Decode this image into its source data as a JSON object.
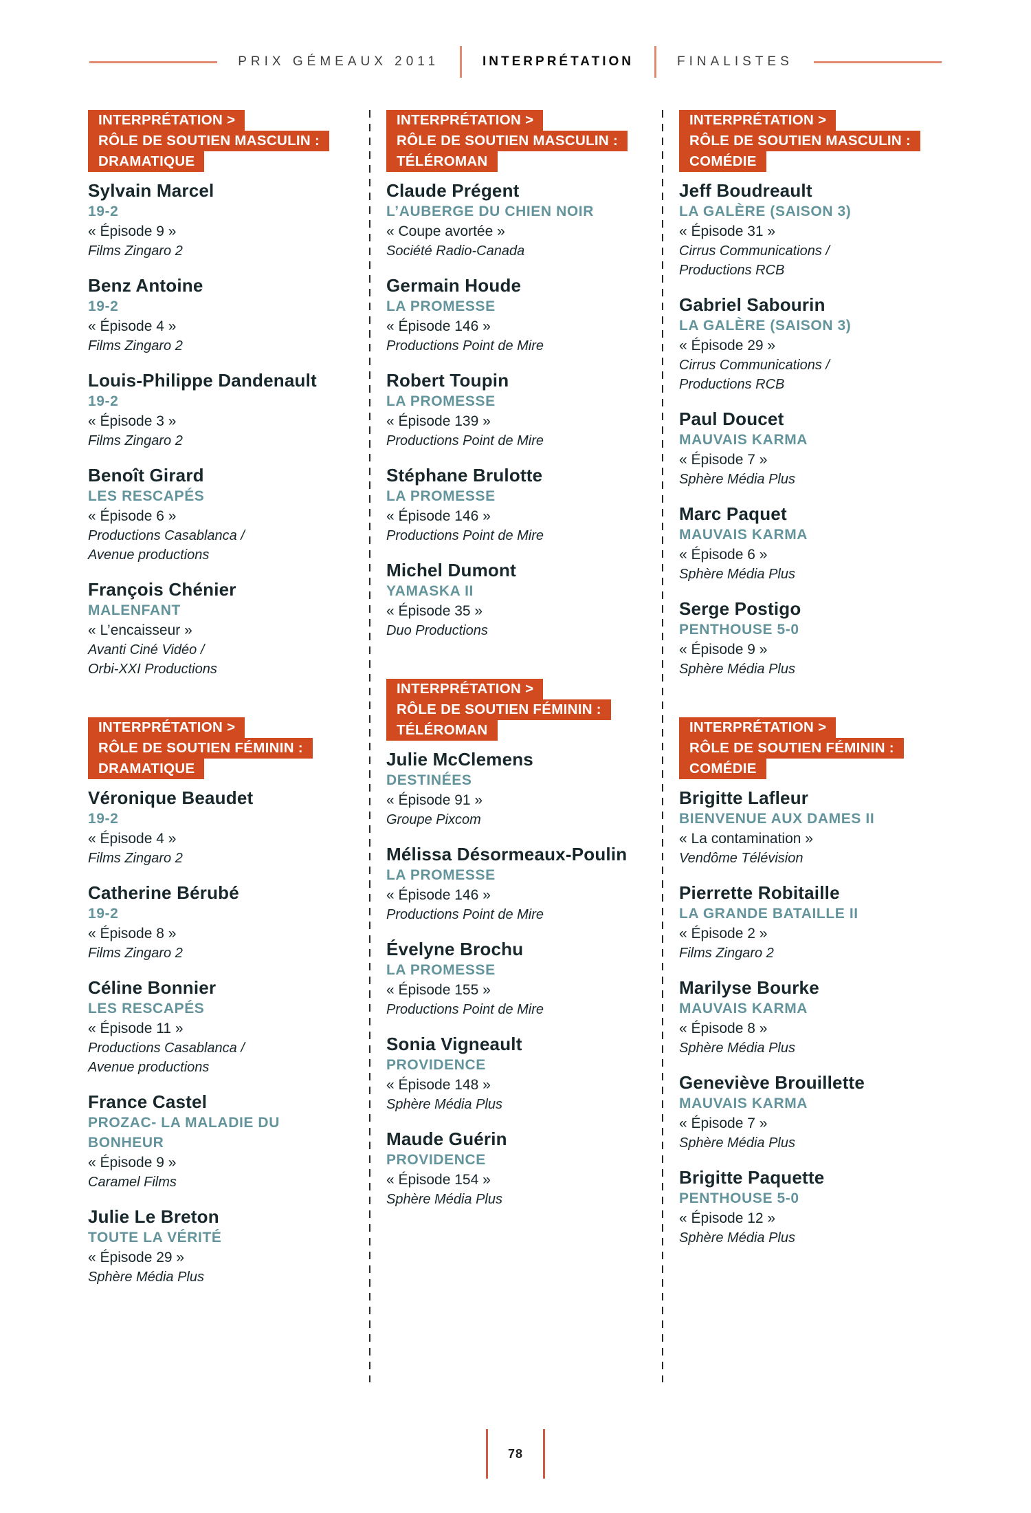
{
  "page_header": {
    "left_label": "PRIX GÉMEAUX 2011",
    "center_label": "INTERPRÉTATION",
    "right_label": "FINALISTES"
  },
  "page_number": "78",
  "colors": {
    "accent": "#d14a20",
    "teal": "#64949b",
    "ink": "#18272b",
    "rule": "#e08a72",
    "footer-rule": "#d05a43"
  },
  "columns": [
    {
      "sections": [
        {
          "header_lines": [
            "INTERPRÉTATION >",
            "RÔLE DE SOUTIEN MASCULIN :",
            "DRAMATIQUE"
          ],
          "entries": [
            {
              "name": "Sylvain Marcel",
              "show": "19-2",
              "episode": "« Épisode 9 »",
              "producer_lines": [
                "Films Zingaro 2"
              ]
            },
            {
              "name": "Benz Antoine",
              "show": "19-2",
              "episode": "« Épisode 4 »",
              "producer_lines": [
                "Films Zingaro 2"
              ]
            },
            {
              "name": "Louis-Philippe Dandenault",
              "show": "19-2",
              "episode": "« Épisode 3 »",
              "producer_lines": [
                "Films Zingaro 2"
              ]
            },
            {
              "name": "Benoît Girard",
              "show": "LES RESCAPÉS",
              "episode": "« Épisode 6 »",
              "producer_lines": [
                "Productions Casablanca /",
                "Avenue productions"
              ]
            },
            {
              "name": "François Chénier",
              "show": "MALENFANT",
              "episode": "« L’encaisseur »",
              "producer_lines": [
                "Avanti Ciné Vidéo /",
                "Orbi-XXI Productions"
              ]
            }
          ]
        },
        {
          "header_lines": [
            "INTERPRÉTATION >",
            "RÔLE DE SOUTIEN FÉMININ :",
            "DRAMATIQUE"
          ],
          "entries": [
            {
              "name": "Véronique Beaudet",
              "show": "19-2",
              "episode": "« Épisode 4 »",
              "producer_lines": [
                "Films Zingaro 2"
              ]
            },
            {
              "name": "Catherine Bérubé",
              "show": "19-2",
              "episode": "« Épisode 8 »",
              "producer_lines": [
                "Films Zingaro 2"
              ]
            },
            {
              "name": "Céline Bonnier",
              "show": "LES RESCAPÉS",
              "episode": "« Épisode 11 »",
              "producer_lines": [
                "Productions Casablanca /",
                "Avenue productions"
              ]
            },
            {
              "name": "France Castel",
              "show": "PROZAC- LA MALADIE DU BONHEUR",
              "episode": "« Épisode 9 »",
              "producer_lines": [
                "Caramel Films"
              ]
            },
            {
              "name": "Julie Le Breton",
              "show": "TOUTE LA VÉRITÉ",
              "episode": "« Épisode 29 »",
              "producer_lines": [
                "Sphère Média Plus"
              ]
            }
          ]
        }
      ]
    },
    {
      "sections": [
        {
          "header_lines": [
            "INTERPRÉTATION >",
            "RÔLE DE SOUTIEN MASCULIN :",
            "TÉLÉROMAN"
          ],
          "entries": [
            {
              "name": "Claude Prégent",
              "show": "L’AUBERGE DU CHIEN NOIR",
              "episode": "« Coupe avortée »",
              "producer_lines": [
                "Société Radio-Canada"
              ]
            },
            {
              "name": "Germain Houde",
              "show": "LA PROMESSE",
              "episode": "« Épisode 146 »",
              "producer_lines": [
                "Productions Point de Mire"
              ]
            },
            {
              "name": "Robert Toupin",
              "show": "LA PROMESSE",
              "episode": "« Épisode 139 »",
              "producer_lines": [
                "Productions Point de Mire"
              ]
            },
            {
              "name": "Stéphane Brulotte",
              "show": "LA PROMESSE",
              "episode": "« Épisode 146 »",
              "producer_lines": [
                "Productions Point de Mire"
              ]
            },
            {
              "name": "Michel Dumont",
              "show": "YAMASKA II",
              "episode": "« Épisode 35 »",
              "producer_lines": [
                "Duo Productions"
              ]
            }
          ]
        },
        {
          "header_lines": [
            "INTERPRÉTATION >",
            "RÔLE DE SOUTIEN FÉMININ :",
            "TÉLÉROMAN"
          ],
          "entries": [
            {
              "name": "Julie McClemens",
              "show": "DESTINÉES",
              "episode": "« Épisode 91 »",
              "producer_lines": [
                "Groupe Pixcom"
              ]
            },
            {
              "name": "Mélissa Désormeaux-Poulin",
              "show": "LA PROMESSE",
              "episode": "« Épisode 146 »",
              "producer_lines": [
                "Productions Point de Mire"
              ]
            },
            {
              "name": "Évelyne Brochu",
              "show": "LA PROMESSE",
              "episode": "« Épisode 155 »",
              "producer_lines": [
                "Productions Point de Mire"
              ]
            },
            {
              "name": "Sonia Vigneault",
              "show": "PROVIDENCE",
              "episode": "« Épisode 148 »",
              "producer_lines": [
                "Sphère Média Plus"
              ]
            },
            {
              "name": "Maude Guérin",
              "show": "PROVIDENCE",
              "episode": "« Épisode 154 »",
              "producer_lines": [
                "Sphère Média Plus"
              ]
            }
          ]
        }
      ]
    },
    {
      "sections": [
        {
          "header_lines": [
            "INTERPRÉTATION >",
            "RÔLE DE SOUTIEN MASCULIN :",
            "COMÉDIE"
          ],
          "entries": [
            {
              "name": "Jeff Boudreault",
              "show": "LA GALÈRE (SAISON 3)",
              "episode": "« Épisode 31 »",
              "producer_lines": [
                "Cirrus Communications /",
                "Productions RCB"
              ]
            },
            {
              "name": "Gabriel Sabourin",
              "show": "LA GALÈRE (SAISON 3)",
              "episode": "« Épisode 29 »",
              "producer_lines": [
                "Cirrus Communications /",
                "Productions RCB"
              ]
            },
            {
              "name": "Paul Doucet",
              "show": "MAUVAIS KARMA",
              "episode": "« Épisode 7 »",
              "producer_lines": [
                "Sphère Média Plus"
              ]
            },
            {
              "name": "Marc Paquet",
              "show": "MAUVAIS KARMA",
              "episode": "« Épisode 6 »",
              "producer_lines": [
                "Sphère Média Plus"
              ]
            },
            {
              "name": "Serge Postigo",
              "show": "PENTHOUSE 5-0",
              "episode": "« Épisode 9 »",
              "producer_lines": [
                "Sphère Média Plus"
              ]
            }
          ]
        },
        {
          "header_lines": [
            "INTERPRÉTATION >",
            "RÔLE DE SOUTIEN FÉMININ :",
            "COMÉDIE"
          ],
          "entries": [
            {
              "name": "Brigitte Lafleur",
              "show": "BIENVENUE AUX DAMES II",
              "episode": "« La contamination »",
              "producer_lines": [
                "Vendôme Télévision"
              ]
            },
            {
              "name": "Pierrette Robitaille",
              "show": "LA GRANDE BATAILLE II",
              "episode": "« Épisode 2 »",
              "producer_lines": [
                "Films Zingaro 2"
              ]
            },
            {
              "name": "Marilyse Bourke",
              "show": "MAUVAIS KARMA",
              "episode": "« Épisode 8 »",
              "producer_lines": [
                "Sphère Média Plus"
              ]
            },
            {
              "name": "Geneviève Brouillette",
              "show": "MAUVAIS KARMA",
              "episode": "« Épisode 7 »",
              "producer_lines": [
                "Sphère Média Plus"
              ]
            },
            {
              "name": "Brigitte Paquette",
              "show": "PENTHOUSE 5-0",
              "episode": "« Épisode 12 »",
              "producer_lines": [
                "Sphère Média Plus"
              ]
            }
          ]
        }
      ]
    }
  ]
}
